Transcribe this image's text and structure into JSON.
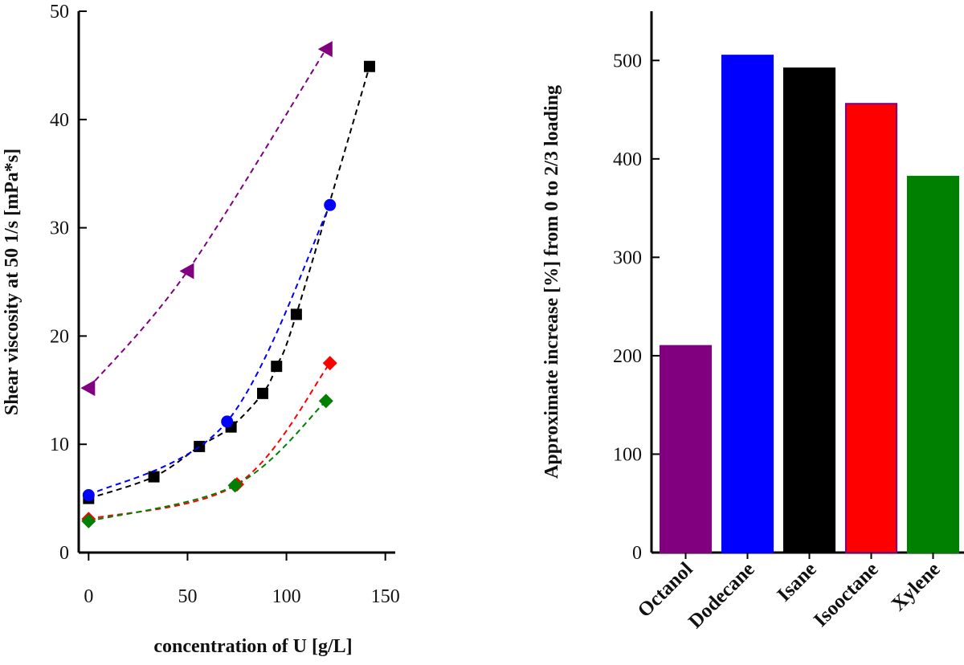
{
  "chart_data": [
    {
      "type": "scatter",
      "title": "",
      "xlabel": "concentration of U [g/L]",
      "ylabel": "Shear viscosity at 50 1/s [mPa*s]",
      "xlim": [
        -5,
        155
      ],
      "ylim": [
        0,
        50
      ],
      "x_ticks": [
        "0",
        "50",
        "100",
        "150"
      ],
      "y_ticks": [
        "0",
        "10",
        "20",
        "30",
        "40",
        "50"
      ],
      "grid": false,
      "line_style": "dashed",
      "series": [
        {
          "color": "#800080",
          "marker": "triangle-left",
          "x": [
            0,
            50,
            120
          ],
          "y": [
            15.2,
            26.0,
            46.5
          ]
        },
        {
          "color": "#000000",
          "marker": "square",
          "x": [
            0,
            33,
            56,
            72,
            88,
            95,
            105,
            142
          ],
          "y": [
            5.0,
            7.0,
            9.8,
            11.6,
            14.7,
            17.2,
            22.0,
            44.9
          ]
        },
        {
          "color": "#0000ff",
          "marker": "circle",
          "x": [
            0,
            70,
            122
          ],
          "y": [
            5.3,
            12.1,
            32.1
          ]
        },
        {
          "color": "#ff0000",
          "marker": "diamond",
          "x": [
            0,
            75,
            122
          ],
          "y": [
            3.1,
            6.3,
            17.5
          ]
        },
        {
          "color": "#008000",
          "marker": "diamond",
          "x": [
            0,
            74,
            120
          ],
          "y": [
            2.9,
            6.2,
            14.0
          ]
        }
      ]
    },
    {
      "type": "bar",
      "title": "",
      "xlabel": "",
      "ylabel": "Approximate increase [%] from 0 to 2/3 loading",
      "ylim": [
        0,
        550
      ],
      "y_ticks": [
        "0",
        "100",
        "200",
        "300",
        "400",
        "500"
      ],
      "grid": false,
      "categories": [
        "Octanol",
        "Dodecane",
        "Isane",
        "Isooctane",
        "Xylene"
      ],
      "values": [
        210,
        505,
        492,
        456,
        382
      ],
      "colors": [
        "#800080",
        "#0000ff",
        "#000000",
        "#ff0000",
        "#008000"
      ],
      "edge_colors": [
        "#800080",
        "#0000ff",
        "#000000",
        "#800080",
        "#008000"
      ]
    }
  ]
}
